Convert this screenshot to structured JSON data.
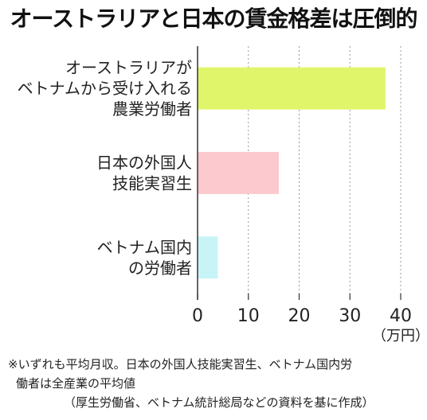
{
  "chart_data": {
    "type": "bar",
    "orientation": "horizontal",
    "title": "オーストラリアと日本の賃金格差は圧倒的",
    "categories": [
      [
        "オーストラリアが",
        "ベトナムから受け入れる",
        "農業労働者"
      ],
      [
        "日本の外国人",
        "技能実習生"
      ],
      [
        "ベトナム国内",
        "の労働者"
      ]
    ],
    "values": [
      37,
      16,
      4
    ],
    "colors": [
      "#e1f56b",
      "#fcc9cf",
      "#c9f4f7"
    ],
    "xlim": [
      0,
      40
    ],
    "xticks": [
      "0",
      "10",
      "20",
      "30",
      "40"
    ],
    "unit_label": "（万円）",
    "grid": "vertical dotted"
  },
  "footnote": {
    "line1": "※いずれも平均月収。日本の外国人技能実習生、ベトナム国内労",
    "line2": "働者は全産業の平均値",
    "line3": "（厚生労働省、ベトナム統計総局などの資料を基に作成）"
  }
}
